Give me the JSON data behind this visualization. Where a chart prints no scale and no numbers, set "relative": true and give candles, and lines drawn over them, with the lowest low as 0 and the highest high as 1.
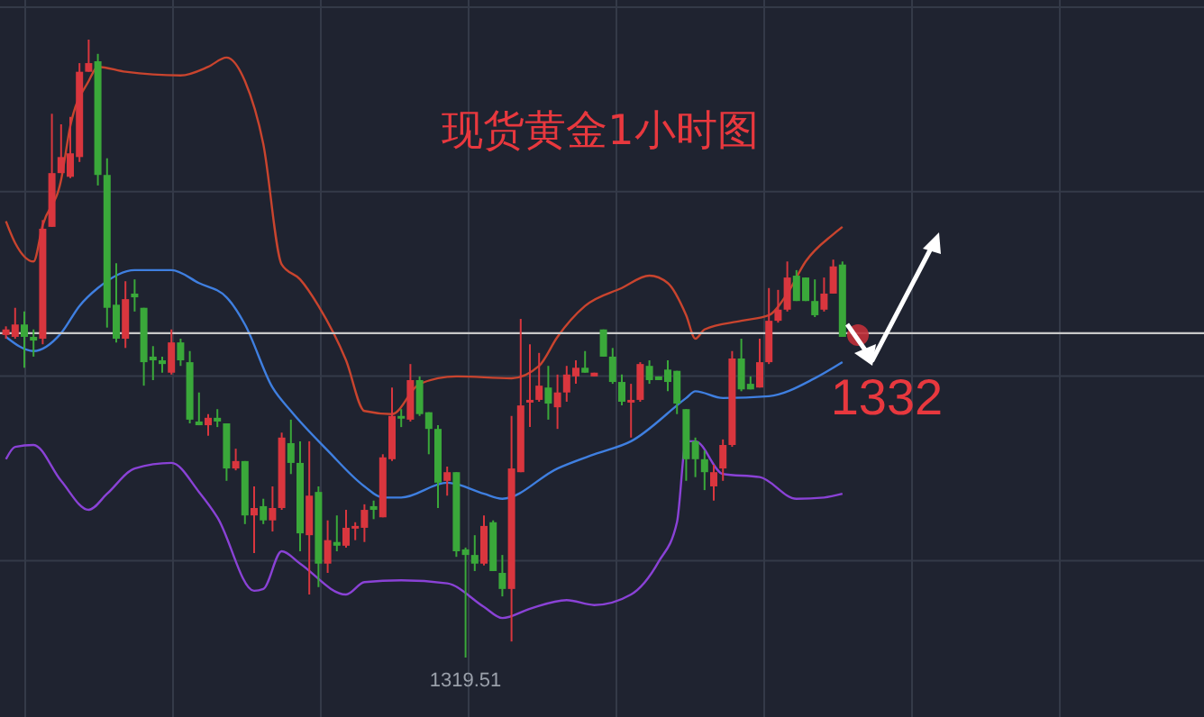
{
  "chart_data": {
    "type": "candlestick",
    "title": "现货黄金1小时图",
    "relative": true,
    "grid": true,
    "categories": [
      null,
      null,
      null,
      null,
      null,
      null,
      null,
      null,
      null,
      null,
      null,
      null,
      null,
      null,
      null,
      null,
      null,
      null,
      null,
      null,
      null,
      null,
      null,
      null,
      null,
      null,
      null,
      null,
      null,
      null,
      null,
      null,
      null,
      null,
      null,
      null,
      null,
      null,
      null,
      null,
      null,
      null,
      null,
      null,
      null,
      null,
      null,
      null,
      null,
      null,
      null,
      null,
      null,
      null,
      null,
      null,
      null,
      null,
      null,
      null,
      null,
      null,
      null,
      null,
      null,
      null,
      null,
      null,
      null,
      null,
      null,
      null,
      null,
      null,
      null,
      null,
      null,
      null,
      null,
      null,
      null,
      null,
      null,
      null,
      null,
      null,
      null,
      null,
      null,
      null,
      null,
      null
    ],
    "ohlc": [
      [
        0.522,
        0.536,
        0.516,
        0.531
      ],
      [
        0.519,
        0.566,
        0.516,
        0.539
      ],
      [
        0.539,
        0.56,
        0.469,
        0.519
      ],
      [
        0.519,
        0.531,
        0.487,
        0.513
      ],
      [
        0.516,
        0.708,
        0.507,
        0.694
      ],
      [
        0.697,
        0.88,
        0.697,
        0.784
      ],
      [
        0.784,
        0.863,
        0.784,
        0.81
      ],
      [
        0.778,
        0.875,
        0.776,
        0.816
      ],
      [
        0.81,
        0.962,
        0.802,
        0.948
      ],
      [
        0.948,
        1.0,
        0.948,
        0.962
      ],
      [
        0.965,
        0.977,
        0.764,
        0.781
      ],
      [
        0.781,
        0.808,
        0.534,
        0.566
      ],
      [
        0.571,
        0.638,
        0.51,
        0.516
      ],
      [
        0.516,
        0.609,
        0.501,
        0.58
      ],
      [
        0.589,
        0.612,
        0.56,
        0.583
      ],
      [
        0.566,
        0.566,
        0.44,
        0.478
      ],
      [
        0.487,
        0.504,
        0.449,
        0.481
      ],
      [
        0.481,
        0.487,
        0.461,
        0.475
      ],
      [
        0.461,
        0.531,
        0.458,
        0.51
      ],
      [
        0.51,
        0.516,
        0.472,
        0.481
      ],
      [
        0.478,
        0.496,
        0.379,
        0.385
      ],
      [
        0.382,
        0.429,
        0.376,
        0.376
      ],
      [
        0.376,
        0.394,
        0.359,
        0.388
      ],
      [
        0.388,
        0.402,
        0.373,
        0.382
      ],
      [
        0.379,
        0.379,
        0.286,
        0.306
      ],
      [
        0.306,
        0.338,
        0.303,
        0.318
      ],
      [
        0.318,
        0.318,
        0.216,
        0.23
      ],
      [
        0.23,
        0.277,
        0.169,
        0.242
      ],
      [
        0.245,
        0.257,
        0.216,
        0.222
      ],
      [
        0.222,
        0.277,
        0.204,
        0.242
      ],
      [
        0.242,
        0.364,
        0.239,
        0.356
      ],
      [
        0.347,
        0.385,
        0.297,
        0.315
      ],
      [
        0.315,
        0.35,
        0.172,
        0.201
      ],
      [
        0.198,
        0.35,
        0.102,
        0.262
      ],
      [
        0.268,
        0.277,
        0.114,
        0.152
      ],
      [
        0.152,
        0.222,
        0.137,
        0.19
      ],
      [
        0.187,
        0.23,
        0.172,
        0.181
      ],
      [
        0.181,
        0.239,
        0.178,
        0.21
      ],
      [
        0.21,
        0.219,
        0.19,
        0.213
      ],
      [
        0.21,
        0.248,
        0.187,
        0.239
      ],
      [
        0.245,
        0.254,
        0.224,
        0.239
      ],
      [
        0.227,
        0.329,
        0.227,
        0.324
      ],
      [
        0.321,
        0.437,
        0.318,
        0.391
      ],
      [
        0.391,
        0.402,
        0.373,
        0.388
      ],
      [
        0.385,
        0.475,
        0.382,
        0.449
      ],
      [
        0.449,
        0.455,
        0.391,
        0.394
      ],
      [
        0.397,
        0.397,
        0.329,
        0.37
      ],
      [
        0.37,
        0.376,
        0.242,
        0.283
      ],
      [
        0.286,
        0.309,
        0.262,
        0.3
      ],
      [
        0.3,
        0.3,
        0.163,
        0.172
      ],
      [
        0.175,
        0.178,
        0.0,
        0.166
      ],
      [
        0.166,
        0.198,
        0.14,
        0.152
      ],
      [
        0.152,
        0.23,
        0.149,
        0.213
      ],
      [
        0.219,
        0.222,
        0.14,
        0.14
      ],
      [
        0.137,
        0.166,
        0.099,
        0.111
      ],
      [
        0.111,
        0.391,
        0.026,
        0.306
      ],
      [
        0.3,
        0.548,
        0.3,
        0.408
      ],
      [
        0.414,
        0.507,
        0.373,
        0.417
      ],
      [
        0.417,
        0.493,
        0.414,
        0.44
      ],
      [
        0.437,
        0.472,
        0.385,
        0.411
      ],
      [
        0.405,
        0.458,
        0.37,
        0.429
      ],
      [
        0.429,
        0.472,
        0.414,
        0.458
      ],
      [
        0.455,
        0.481,
        0.443,
        0.469
      ],
      [
        0.469,
        0.496,
        0.461,
        0.461
      ],
      [
        0.455,
        0.461,
        0.455,
        0.461
      ],
      [
        0.531,
        0.531,
        0.487,
        0.487
      ],
      [
        0.487,
        0.501,
        0.443,
        0.446
      ],
      [
        0.446,
        0.458,
        0.408,
        0.414
      ],
      [
        0.414,
        0.443,
        0.356,
        0.417
      ],
      [
        0.417,
        0.478,
        0.414,
        0.475
      ],
      [
        0.472,
        0.481,
        0.443,
        0.449
      ],
      [
        0.455,
        0.455,
        0.449,
        0.449
      ],
      [
        0.466,
        0.481,
        0.431,
        0.446
      ],
      [
        0.464,
        0.464,
        0.394,
        0.411
      ],
      [
        0.402,
        0.402,
        0.286,
        0.321
      ],
      [
        0.35,
        0.356,
        0.292,
        0.321
      ],
      [
        0.321,
        0.335,
        0.271,
        0.3
      ],
      [
        0.277,
        0.312,
        0.254,
        0.3
      ],
      [
        0.306,
        0.353,
        0.286,
        0.344
      ],
      [
        0.344,
        0.496,
        0.341,
        0.484
      ],
      [
        0.484,
        0.516,
        0.431,
        0.434
      ],
      [
        0.443,
        0.455,
        0.434,
        0.434
      ],
      [
        0.437,
        0.516,
        0.437,
        0.478
      ],
      [
        0.478,
        0.598,
        0.475,
        0.545
      ],
      [
        0.545,
        0.595,
        0.542,
        0.563
      ],
      [
        0.563,
        0.641,
        0.56,
        0.615
      ],
      [
        0.618,
        0.627,
        0.577,
        0.577
      ],
      [
        0.615,
        0.615,
        0.577,
        0.577
      ],
      [
        0.577,
        0.612,
        0.551,
        0.554
      ],
      [
        0.563,
        0.615,
        0.56,
        0.589
      ],
      [
        0.589,
        0.644,
        0.589,
        0.633
      ],
      [
        0.636,
        0.641,
        0.519,
        0.519
      ]
    ],
    "colors": [
      "#d9363e",
      "#d9363e",
      "#3aa83a",
      "#3aa83a",
      "#d9363e",
      "#d9363e",
      "#d9363e",
      "#d9363e",
      "#d9363e",
      "#d9363e",
      "#3aa83a",
      "#3aa83a",
      "#3aa83a",
      "#d9363e",
      "#3aa83a",
      "#3aa83a",
      "#3aa83a",
      "#3aa83a",
      "#d9363e",
      "#3aa83a",
      "#3aa83a",
      "#3aa83a",
      "#d9363e",
      "#3aa83a",
      "#3aa83a",
      "#d9363e",
      "#3aa83a",
      "#d9363e",
      "#3aa83a",
      "#d9363e",
      "#d9363e",
      "#3aa83a",
      "#3aa83a",
      "#d9363e",
      "#3aa83a",
      "#d9363e",
      "#3aa83a",
      "#d9363e",
      "#d9363e",
      "#d9363e",
      "#3aa83a",
      "#d9363e",
      "#d9363e",
      "#3aa83a",
      "#d9363e",
      "#3aa83a",
      "#3aa83a",
      "#3aa83a",
      "#d9363e",
      "#3aa83a",
      "#3aa83a",
      "#3aa83a",
      "#d9363e",
      "#3aa83a",
      "#3aa83a",
      "#d9363e",
      "#d9363e",
      "#d9363e",
      "#d9363e",
      "#3aa83a",
      "#d9363e",
      "#d9363e",
      "#d9363e",
      "#3aa83a",
      "#d9363e",
      "#3aa83a",
      "#3aa83a",
      "#3aa83a",
      "#d9363e",
      "#d9363e",
      "#3aa83a",
      "#3aa83a",
      "#3aa83a",
      "#3aa83a",
      "#3aa83a",
      "#3aa83a",
      "#3aa83a",
      "#d9363e",
      "#d9363e",
      "#d9363e",
      "#3aa83a",
      "#3aa83a",
      "#d9363e",
      "#d9363e",
      "#d9363e",
      "#d9363e",
      "#3aa83a",
      "#3aa83a",
      "#3aa83a",
      "#d9363e",
      "#d9363e",
      "#3aa83a"
    ],
    "series": [
      {
        "type": "line",
        "color": "#c9442e",
        "values": [
          0.706,
          0.671,
          null,
          0.641,
          0.7,
          null,
          0.773,
          0.86,
          null,
          0.933,
          0.956,
          null,
          null,
          0.948,
          null,
          null,
          null,
          null,
          null,
          0.942,
          null,
          null,
          0.956,
          null,
          0.971,
          null,
          0.933,
          null,
          0.831,
          null,
          0.636,
          null,
          0.612,
          null,
          0.569,
          null,
          null,
          0.481,
          null,
          0.399,
          null,
          null,
          0.394,
          null,
          null,
          0.443,
          null,
          null,
          null,
          0.455,
          null,
          null,
          null,
          null,
          null,
          0.452,
          null,
          null,
          0.472,
          null,
          0.519,
          null,
          null,
          0.569,
          null,
          null,
          null,
          0.598,
          null,
          null,
          0.618,
          null,
          0.606,
          null,
          0.554,
          0.516,
          0.531,
          null,
          null,
          null,
          0.545,
          null,
          null,
          0.554,
          null,
          0.589,
          null,
          0.641,
          null,
          null,
          0.685,
          0.697
        ]
      },
      {
        "type": "line",
        "color": "#3f7fe0",
        "values": [
          0.519,
          null,
          null,
          0.496,
          null,
          null,
          0.525,
          null,
          0.569,
          null,
          0.598,
          null,
          null,
          null,
          0.627,
          null,
          null,
          null,
          0.627,
          null,
          null,
          0.606,
          null,
          null,
          0.583,
          null,
          0.539,
          null,
          null,
          0.437,
          null,
          0.399,
          null,
          null,
          null,
          0.335,
          null,
          null,
          null,
          0.277,
          null,
          0.259,
          null,
          0.259,
          null,
          null,
          null,
          null,
          0.283,
          null,
          null,
          null,
          0.265,
          null,
          0.257,
          null,
          null,
          null,
          null,
          null,
          0.306,
          null,
          null,
          null,
          0.329,
          null,
          null,
          null,
          0.35,
          null,
          null,
          null,
          null,
          null,
          0.42,
          0.431,
          null,
          null,
          0.42,
          null,
          null,
          null,
          null,
          0.423,
          null,
          null,
          null,
          null,
          0.452,
          null,
          null,
          0.478
        ]
      },
      {
        "type": "line",
        "color": "#8a42d6",
        "values": [
          0.321,
          0.341,
          null,
          0.344,
          null,
          null,
          0.286,
          null,
          null,
          0.239,
          null,
          0.265,
          null,
          null,
          0.306,
          null,
          null,
          null,
          0.315,
          null,
          null,
          0.268,
          null,
          0.227,
          null,
          null,
          null,
          0.108,
          0.111,
          null,
          0.172,
          null,
          0.152,
          null,
          null,
          null,
          null,
          0.102,
          null,
          0.122,
          null,
          null,
          null,
          0.125,
          null,
          null,
          null,
          null,
          0.12,
          null,
          null,
          null,
          0.082,
          null,
          0.064,
          null,
          null,
          0.079,
          null,
          null,
          null,
          0.093,
          null,
          null,
          0.085,
          null,
          null,
          null,
          0.102,
          null,
          null,
          0.155,
          null,
          0.219,
          0.35,
          0.35,
          null,
          null,
          0.297,
          null,
          null,
          null,
          0.292,
          null,
          null,
          null,
          0.257,
          null,
          null,
          0.259,
          null,
          0.265
        ]
      }
    ],
    "ref_lines": [
      {
        "axis": "y",
        "value": 0.525,
        "color": "#c8c8c8"
      }
    ],
    "annotations": [
      {
        "text": "1319.51",
        "y": 0
      },
      "1332"
    ]
  }
}
